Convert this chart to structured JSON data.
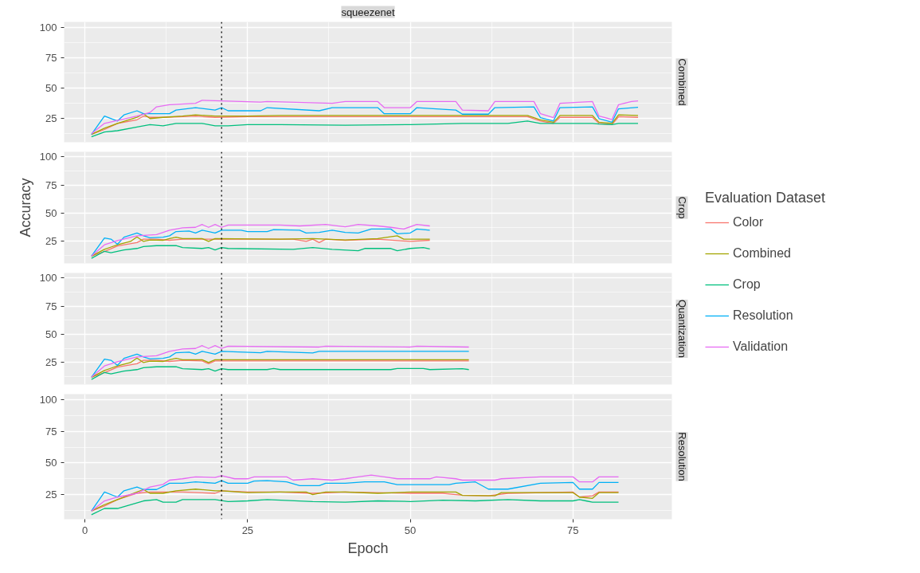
{
  "chart_data": [
    {
      "type": "line",
      "title": "squeezenet",
      "subtitle": "Combined",
      "xlim": [
        -3.2,
        90.2
      ],
      "ylim": [
        5.5,
        104.5
      ],
      "xticks": [
        0,
        25,
        50,
        75
      ],
      "yticks": [
        25,
        50,
        75,
        100
      ],
      "grid": true,
      "tick_labels": "y",
      "legend": "right",
      "legend_title": "Evaluation Dataset",
      "line_style": "solid",
      "marker": "none",
      "ref_lines": [
        {
          "axis": "x",
          "value": 21,
          "line_style": "dotted",
          "color": "#000000"
        }
      ],
      "series": [
        {
          "name": "Color",
          "color": "#F8766D",
          "x": [
            1,
            3,
            5,
            8,
            9,
            10,
            12,
            15,
            17,
            20,
            25,
            30,
            40,
            50,
            60,
            66,
            68,
            70,
            72,
            73,
            78,
            79,
            81,
            82,
            85
          ],
          "values": [
            12,
            16,
            21,
            24,
            27,
            26,
            26,
            26.5,
            27,
            26,
            26.5,
            26.5,
            26.5,
            26.5,
            26.5,
            26.5,
            26.5,
            23,
            21,
            26,
            26,
            21,
            20,
            26.5,
            26
          ]
        },
        {
          "name": "Combined",
          "color": "#A3A500",
          "x": [
            1,
            3,
            5,
            8,
            9,
            10,
            12,
            15,
            17,
            20,
            21,
            25,
            30,
            40,
            50,
            60,
            66,
            68,
            70,
            72,
            73,
            78,
            79,
            81,
            82,
            85
          ],
          "values": [
            12,
            17,
            21,
            26,
            29,
            25,
            26,
            27,
            28,
            27,
            27,
            27,
            27.5,
            27.5,
            27.5,
            27.5,
            27.5,
            27.5,
            24,
            22,
            27.5,
            27.5,
            22,
            21,
            28,
            27.5
          ]
        },
        {
          "name": "Crop",
          "color": "#00BF7D",
          "x": [
            1,
            3,
            5,
            8,
            10,
            12,
            14,
            18,
            20,
            22,
            25,
            30,
            40,
            50,
            58,
            65,
            68,
            70,
            78,
            79,
            81,
            82,
            85
          ],
          "values": [
            10,
            14,
            15,
            18,
            20,
            19,
            21,
            21,
            19,
            19,
            20,
            20,
            19.5,
            20,
            21,
            21,
            23,
            21,
            21,
            20.5,
            20,
            21,
            21
          ]
        },
        {
          "name": "Resolution",
          "color": "#00B0F6",
          "x": [
            1,
            3,
            5,
            6,
            8,
            9,
            11,
            13,
            14,
            17,
            20,
            21,
            22,
            27,
            28,
            36,
            38,
            45,
            46,
            50,
            51,
            57,
            58,
            62,
            63,
            69,
            70,
            72,
            73,
            78,
            79,
            81,
            82,
            85
          ],
          "values": [
            12,
            27,
            23,
            28,
            31.4,
            29,
            29,
            29,
            32,
            34,
            32,
            34,
            31.4,
            31.4,
            34,
            31.4,
            34,
            34,
            29,
            29,
            34,
            32,
            28.6,
            28.6,
            34,
            34.6,
            25.7,
            23,
            34,
            34.6,
            25,
            22,
            33,
            34.3
          ]
        },
        {
          "name": "Validation",
          "color": "#E76BF3",
          "x": [
            1,
            3,
            8,
            10,
            11,
            13,
            17,
            18,
            27,
            28,
            38,
            40,
            45,
            46,
            50,
            51,
            57,
            58,
            62,
            63,
            69,
            70,
            72,
            73,
            78,
            79,
            81,
            82,
            84,
            85
          ],
          "values": [
            12.5,
            21,
            27,
            30,
            34.6,
            36.4,
            37.5,
            40,
            38.5,
            39,
            37.5,
            39,
            39,
            34,
            34,
            39,
            39,
            32,
            31.4,
            39,
            39,
            29,
            25.7,
            37.5,
            39,
            27,
            24.3,
            36.4,
            39,
            39.5
          ]
        }
      ]
    },
    {
      "type": "line",
      "subtitle": "Crop",
      "ylabel": "Accuracy",
      "xlim": [
        -3.2,
        90.2
      ],
      "ylim": [
        5.5,
        104.5
      ],
      "xticks": [
        0,
        25,
        50,
        75
      ],
      "yticks": [
        25,
        50,
        75,
        100
      ],
      "grid": true,
      "tick_labels": "y",
      "line_style": "solid",
      "marker": "none",
      "ref_lines": [
        {
          "axis": "x",
          "value": 21,
          "line_style": "dotted",
          "color": "#000000"
        }
      ],
      "series": [
        {
          "color": "#F8766D",
          "x": [
            1,
            3,
            5,
            8,
            9,
            11,
            13,
            15,
            20,
            28,
            32,
            34,
            35,
            36,
            37,
            40,
            45,
            50,
            53
          ],
          "values": [
            12,
            16,
            21,
            24,
            27,
            27,
            26,
            27,
            27,
            27,
            27,
            25,
            27,
            24,
            27,
            26,
            27,
            25,
            26
          ]
        },
        {
          "color": "#A3A500",
          "x": [
            1,
            3,
            4,
            5,
            7,
            8,
            9,
            10,
            12,
            13,
            14,
            15,
            18,
            19,
            20,
            30,
            35,
            40,
            45,
            48,
            49,
            53
          ],
          "values": [
            12,
            18,
            20,
            22,
            25,
            29,
            25,
            26.25,
            26,
            27.5,
            28.75,
            27.5,
            27.5,
            25,
            27.5,
            27,
            27.5,
            26.25,
            27.5,
            30,
            27,
            27
          ]
        },
        {
          "color": "#00BF7D",
          "x": [
            1,
            3,
            4,
            6,
            8,
            9,
            11,
            14,
            15,
            18,
            19,
            20,
            21,
            22,
            32,
            35,
            38,
            42,
            43,
            47,
            48,
            50,
            52,
            53
          ],
          "values": [
            10,
            16.25,
            15,
            17.5,
            18.75,
            20.5,
            21.25,
            21.25,
            19.5,
            18.75,
            19.5,
            17.5,
            19.5,
            18.75,
            18,
            19.5,
            18,
            16.75,
            18.75,
            18.75,
            16.75,
            18.75,
            19.5,
            18.25
          ]
        },
        {
          "color": "#00B0F6",
          "x": [
            1,
            3,
            4,
            5,
            6,
            8,
            9,
            10,
            12,
            13,
            14,
            16,
            17,
            18,
            20,
            21,
            24,
            25,
            28,
            29,
            33,
            34,
            36,
            38,
            40,
            42,
            44,
            47,
            48,
            50,
            51,
            53
          ],
          "values": [
            12,
            28,
            27,
            22.5,
            28.75,
            32.5,
            30,
            28.25,
            28.75,
            30,
            33.75,
            34.25,
            32.5,
            35,
            32.5,
            35,
            35,
            33.75,
            33.75,
            35.5,
            35,
            32.5,
            33,
            35,
            33,
            32.5,
            36,
            36,
            31.75,
            32.5,
            36,
            35
          ]
        },
        {
          "color": "#E76BF3",
          "x": [
            1,
            3,
            5,
            8,
            11,
            13,
            15,
            17,
            18,
            19,
            20,
            21,
            22,
            30,
            33,
            37,
            40,
            42,
            45,
            47,
            49,
            51,
            53
          ],
          "values": [
            12,
            22,
            25.75,
            30,
            31,
            35,
            37,
            37.5,
            40,
            37.5,
            40,
            37.5,
            39.5,
            39.5,
            38.75,
            40,
            38,
            40,
            38.75,
            37.5,
            36,
            40,
            38.75
          ]
        }
      ]
    },
    {
      "type": "line",
      "subtitle": "Quantization",
      "xlim": [
        -3.2,
        90.2
      ],
      "ylim": [
        5.5,
        104.5
      ],
      "xticks": [
        0,
        25,
        50,
        75
      ],
      "yticks": [
        25,
        50,
        75,
        100
      ],
      "grid": true,
      "tick_labels": "y",
      "line_style": "solid",
      "marker": "none",
      "ref_lines": [
        {
          "axis": "x",
          "value": 21,
          "line_style": "dotted",
          "color": "#000000"
        }
      ],
      "series": [
        {
          "color": "#F8766D",
          "x": [
            1,
            3,
            5,
            8,
            9,
            11,
            13,
            15,
            18,
            19,
            20,
            59
          ],
          "values": [
            12,
            16,
            21,
            24,
            27,
            27,
            26,
            27,
            26.5,
            24,
            26.5,
            26.5
          ]
        },
        {
          "color": "#A3A500",
          "x": [
            1,
            3,
            4,
            5,
            7,
            8,
            9,
            10,
            12,
            13,
            14,
            15,
            18,
            19,
            20,
            59
          ],
          "values": [
            12,
            18,
            20,
            22,
            25,
            29,
            25,
            26.25,
            26,
            27.5,
            28.75,
            27.5,
            27.5,
            25,
            27.5,
            27.5
          ]
        },
        {
          "color": "#00BF7D",
          "x": [
            1,
            3,
            4,
            6,
            8,
            9,
            11,
            14,
            15,
            18,
            19,
            20,
            21,
            22,
            28,
            29,
            30,
            47,
            48,
            52,
            53,
            58,
            59
          ],
          "values": [
            10,
            16.25,
            15,
            17.5,
            18.75,
            20.5,
            21.25,
            21.25,
            19.5,
            18.75,
            19.5,
            17.5,
            19.5,
            18.75,
            18.75,
            19.75,
            18.75,
            18.75,
            19.75,
            19.75,
            18.75,
            19.5,
            18.75
          ]
        },
        {
          "color": "#00B0F6",
          "x": [
            1,
            3,
            4,
            5,
            6,
            8,
            9,
            10,
            12,
            13,
            14,
            16,
            17,
            18,
            20,
            21,
            27,
            28,
            35,
            36,
            59
          ],
          "values": [
            12,
            28,
            27,
            22.5,
            28.75,
            32.5,
            30,
            28.25,
            28.75,
            30,
            33.75,
            34.25,
            32.5,
            35,
            32.5,
            35,
            33.75,
            35,
            33.5,
            35,
            35
          ]
        },
        {
          "color": "#E76BF3",
          "x": [
            1,
            3,
            5,
            8,
            11,
            13,
            15,
            17,
            18,
            19,
            20,
            21,
            22,
            36,
            37,
            50,
            51,
            59
          ],
          "values": [
            12,
            22,
            25.75,
            30,
            31,
            35,
            37,
            37.5,
            40,
            37.5,
            40,
            37.5,
            39.5,
            38.75,
            39.5,
            38.75,
            39.5,
            38.75
          ]
        }
      ]
    },
    {
      "type": "line",
      "subtitle": "Resolution",
      "xlabel": "Epoch",
      "xlim": [
        -3.2,
        90.2
      ],
      "ylim": [
        5.5,
        104.5
      ],
      "xticks": [
        0,
        25,
        50,
        75
      ],
      "yticks": [
        25,
        50,
        75,
        100
      ],
      "grid": true,
      "line_style": "solid",
      "marker": "none",
      "ref_lines": [
        {
          "axis": "x",
          "value": 21,
          "line_style": "dotted",
          "color": "#000000"
        }
      ],
      "series": [
        {
          "color": "#F8766D",
          "x": [
            1,
            3,
            5,
            8,
            10,
            15,
            20,
            21,
            25,
            30,
            35,
            40,
            50,
            55,
            58,
            62,
            65,
            75,
            76,
            78,
            79,
            82
          ],
          "values": [
            12,
            16,
            21,
            26,
            27,
            27,
            26,
            28,
            27,
            27,
            26,
            27,
            26,
            26,
            24.5,
            24,
            26,
            27,
            23,
            24,
            27,
            27
          ]
        },
        {
          "color": "#A3A500",
          "x": [
            1,
            3,
            5,
            8,
            9,
            10,
            12,
            14,
            17,
            20,
            21,
            25,
            30,
            34,
            35,
            37,
            40,
            45,
            50,
            57,
            58,
            63,
            64,
            75,
            76,
            78,
            79,
            82
          ],
          "values": [
            12,
            17,
            21,
            27,
            29,
            26,
            26,
            28,
            29.3,
            28,
            28,
            26.5,
            27,
            27,
            25,
            27,
            27,
            26,
            27,
            27,
            24.3,
            24,
            26.5,
            26.5,
            23,
            22,
            26.5,
            26.5
          ]
        },
        {
          "color": "#00BF7D",
          "x": [
            1,
            3,
            5,
            7,
            9,
            11,
            12,
            14,
            15,
            20,
            22,
            25,
            28,
            35,
            40,
            45,
            50,
            55,
            60,
            65,
            70,
            75,
            76,
            77,
            78,
            82
          ],
          "values": [
            9,
            14,
            14,
            17,
            20,
            21,
            19,
            19,
            21,
            21,
            19.5,
            20,
            21,
            19.5,
            19,
            20,
            19.5,
            20.5,
            20,
            21,
            20,
            20,
            21,
            20,
            19,
            19
          ]
        },
        {
          "color": "#00B0F6",
          "x": [
            1,
            3,
            5,
            6,
            8,
            9,
            11,
            13,
            15,
            17,
            20,
            21,
            22,
            25,
            26,
            28,
            31,
            33,
            36,
            37,
            40,
            43,
            46,
            48,
            56,
            57,
            60,
            62,
            65,
            70,
            75,
            76,
            78,
            79,
            82
          ],
          "values": [
            12,
            27,
            23,
            28,
            31,
            29,
            29,
            34,
            34,
            35,
            34,
            36,
            34,
            34,
            35.7,
            36,
            35,
            32,
            32,
            34,
            34,
            35,
            35,
            32.9,
            32.9,
            34,
            35,
            29.3,
            29.3,
            34,
            34.6,
            29.3,
            29.3,
            34.6,
            34.6
          ]
        },
        {
          "color": "#E76BF3",
          "x": [
            1,
            3,
            5,
            8,
            10,
            12,
            13,
            15,
            17,
            20,
            21,
            23,
            25,
            26,
            31,
            32,
            35,
            38,
            40,
            42,
            44,
            46,
            48,
            53,
            54,
            57,
            58,
            63,
            64,
            70,
            75,
            76,
            78,
            79,
            82
          ],
          "values": [
            12,
            20,
            23,
            26,
            31,
            33,
            36.4,
            37.5,
            39,
            38.5,
            40,
            37.5,
            37.5,
            39,
            39,
            36.4,
            37.5,
            36.4,
            37.5,
            39,
            40.4,
            39,
            37.5,
            37.5,
            39,
            37.5,
            36.4,
            36.4,
            37.5,
            39,
            39,
            35,
            35,
            39,
            39
          ]
        }
      ]
    }
  ]
}
